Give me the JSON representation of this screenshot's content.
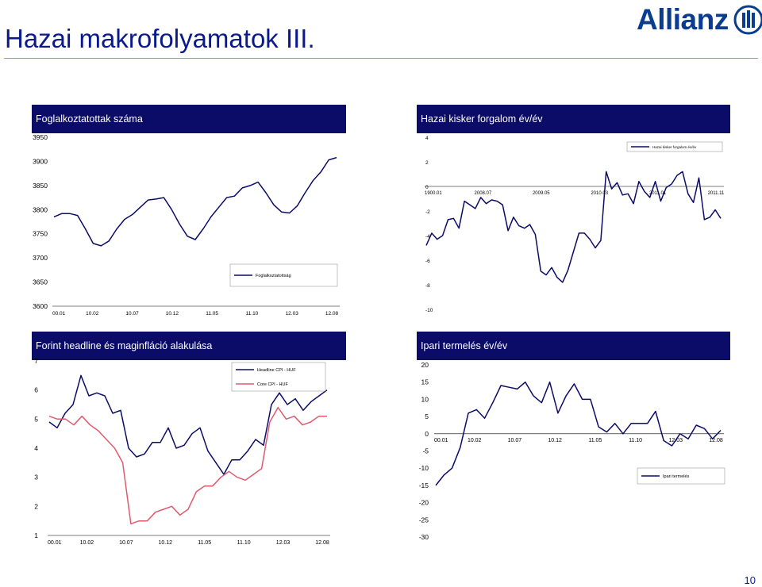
{
  "slide": {
    "title": "Hazai makrofolyamatok III.",
    "logo_text": "Allianz",
    "page_number": "10",
    "accent_color": "#0b0c68",
    "brand_color": "#0a3d8f"
  },
  "chart_data": [
    {
      "id": "employment",
      "type": "line",
      "title": "Foglalkoztatottak száma",
      "x_ticks": [
        "00.01",
        "10.02",
        "10.07",
        "10.12",
        "11.05",
        "11.10",
        "12.03",
        "12.08"
      ],
      "ylim": [
        3600,
        3950
      ],
      "y_ticks": [
        3600,
        3650,
        3700,
        3750,
        3800,
        3850,
        3900,
        3950
      ],
      "legend": "top-right area (inside plot, lower)",
      "series": [
        {
          "name": "Foglalkoztatottság",
          "color": "#0b0c68",
          "values": [
            3785,
            3792,
            3792,
            3788,
            3760,
            3730,
            3725,
            3735,
            3760,
            3780,
            3790,
            3805,
            3820,
            3822,
            3825,
            3800,
            3770,
            3745,
            3738,
            3760,
            3785,
            3805,
            3825,
            3828,
            3845,
            3850,
            3857,
            3835,
            3810,
            3795,
            3793,
            3808,
            3835,
            3860,
            3878,
            3903,
            3908
          ]
        }
      ]
    },
    {
      "id": "retail",
      "type": "line",
      "title": "Hazai kisker forgalom év/év",
      "x_ticks": [
        "1900.01",
        "2008.07",
        "2009.05",
        "2010.03",
        "2011.01",
        "2011.11"
      ],
      "ylim": [
        -10,
        4
      ],
      "y_ticks": [
        -10,
        -8,
        -6,
        -4,
        -2,
        0,
        2,
        4
      ],
      "legend": "top-right",
      "series": [
        {
          "name": "Hazai kisker forgalom év/év",
          "color": "#0b0c68",
          "values": [
            -4.8,
            -3.8,
            -4.3,
            -4.0,
            -2.7,
            -2.6,
            -3.4,
            -1.2,
            -1.5,
            -1.8,
            -0.9,
            -1.4,
            -1.1,
            -1.2,
            -1.5,
            -3.6,
            -2.5,
            -3.2,
            -3.4,
            -3.1,
            -3.9,
            -6.9,
            -7.2,
            -6.6,
            -7.4,
            -7.8,
            -6.8,
            -5.3,
            -3.8,
            -3.8,
            -4.3,
            -5.0,
            -4.4,
            1.2,
            -0.2,
            0.3,
            -0.7,
            -0.6,
            -1.4,
            0.4,
            -0.4,
            -0.9,
            0.4,
            -1.2,
            -0.1,
            0.2,
            0.9,
            1.2,
            -0.6,
            -1.3,
            0.7,
            -2.7,
            -2.5,
            -1.9,
            -2.6
          ]
        }
      ]
    },
    {
      "id": "inflation",
      "type": "line",
      "title": "Forint headline és maginfláció alakulása",
      "x_ticks": [
        "00.01",
        "10.02",
        "10.07",
        "10.12",
        "11.05",
        "11.10",
        "12.03",
        "12.08"
      ],
      "ylim": [
        1,
        7
      ],
      "y_ticks": [
        1,
        2,
        3,
        4,
        5,
        6,
        7
      ],
      "legend": "top-right",
      "series": [
        {
          "name": "Headline CPI - HUF",
          "color": "#0b0c68",
          "values": [
            4.9,
            4.7,
            5.2,
            5.5,
            6.5,
            5.8,
            5.9,
            5.8,
            5.2,
            5.3,
            4.0,
            3.7,
            3.8,
            4.2,
            4.2,
            4.7,
            4.0,
            4.1,
            4.5,
            4.7,
            3.9,
            3.5,
            3.1,
            3.6,
            3.6,
            3.9,
            4.3,
            4.1,
            5.5,
            5.9,
            5.5,
            5.7,
            5.3,
            5.6,
            5.8,
            6.0
          ]
        },
        {
          "name": "Core CPI - HUF",
          "color": "#e05a6e",
          "values": [
            5.1,
            5.0,
            5.0,
            4.8,
            5.1,
            4.8,
            4.6,
            4.3,
            4.0,
            3.5,
            1.4,
            1.5,
            1.5,
            1.8,
            1.9,
            2.0,
            1.7,
            1.9,
            2.5,
            2.7,
            2.7,
            3.0,
            3.2,
            3.0,
            2.9,
            3.1,
            3.3,
            4.9,
            5.4,
            5.0,
            5.1,
            4.8,
            4.9,
            5.1,
            5.1
          ]
        }
      ]
    },
    {
      "id": "industry",
      "type": "line",
      "title": "Ipari termelés év/év",
      "x_ticks": [
        "00.01",
        "10.02",
        "10.07",
        "10.12",
        "11.05",
        "11.10",
        "12.03",
        "12.08"
      ],
      "ylim": [
        -30,
        20
      ],
      "y_ticks": [
        -30,
        -25,
        -20,
        -15,
        -10,
        -5,
        0,
        5,
        10,
        15,
        20
      ],
      "legend": "bottom-right",
      "series": [
        {
          "name": "Ipari termelés",
          "color": "#0b0c68",
          "values": [
            -15,
            -12,
            -10,
            -4,
            6,
            7,
            4.5,
            9,
            14,
            13.5,
            13,
            15,
            11,
            9,
            15,
            6,
            11,
            14.5,
            10,
            10,
            2,
            0.5,
            3,
            0,
            3,
            3,
            3,
            6.5,
            -2,
            -3.5,
            0,
            -1.5,
            2.5,
            1.5,
            -1.5,
            1
          ]
        }
      ]
    }
  ]
}
